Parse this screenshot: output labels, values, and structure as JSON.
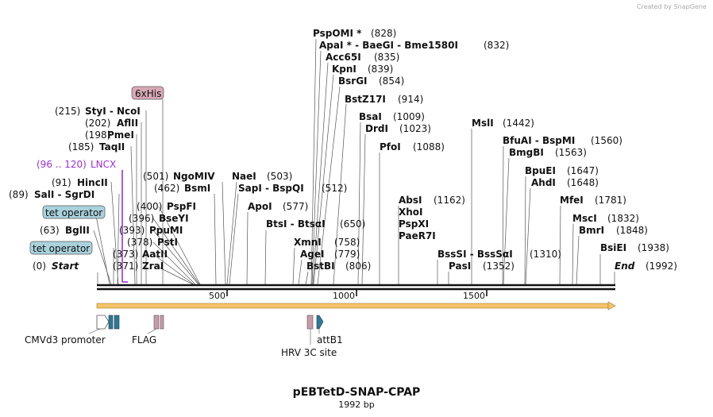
{
  "watermark": "Created by SnapGene",
  "plasmid": {
    "name": "pEBTetD-SNAP-CPAP",
    "length_label": "1992 bp",
    "length": 1992
  },
  "ruler": {
    "ticks": [
      500,
      1000,
      1500
    ],
    "tick_labels": [
      "500",
      "1000",
      "1500"
    ]
  },
  "start_label": "Start",
  "start_pos": "(0)",
  "end_label": "End",
  "end_pos": "(1992)",
  "enzymes": [
    {
      "name": "ZraI",
      "pos": "(371)"
    },
    {
      "name": "AatII",
      "pos": "(373)"
    },
    {
      "name": "PstI",
      "pos": "(378)"
    },
    {
      "name": "PpuMI",
      "pos": "(393)"
    },
    {
      "name": "BseYI",
      "pos": "(396)"
    },
    {
      "name": "PspFI",
      "pos": "(400)"
    },
    {
      "name": "BsmI",
      "pos": "(462)"
    },
    {
      "name": "NgoMIV",
      "pos": "(501)"
    },
    {
      "name": "NaeI",
      "pos": "(503)"
    },
    {
      "name": "SapI - BspQI",
      "pos": "(512)"
    },
    {
      "name": "ApoI",
      "pos": "(577)"
    },
    {
      "name": "BtsI - BtsαI",
      "pos": "(650)"
    },
    {
      "name": "XmnI",
      "pos": "(758)"
    },
    {
      "name": "AgeI",
      "pos": "(779)"
    },
    {
      "name": "BstBI",
      "pos": "(806)"
    },
    {
      "name": "PspOMI *",
      "pos": "(828)"
    },
    {
      "name": "ApaI * - BaeGI - Bme1580I",
      "pos": "(832)"
    },
    {
      "name": "Acc65I",
      "pos": "(835)"
    },
    {
      "name": "KpnI",
      "pos": "(839)"
    },
    {
      "name": "BsrGI",
      "pos": "(854)"
    },
    {
      "name": "BstZ17I",
      "pos": "(914)"
    },
    {
      "name": "BsaI",
      "pos": "(1009)"
    },
    {
      "name": "DrdI",
      "pos": "(1023)"
    },
    {
      "name": "PfoI",
      "pos": "(1088)"
    },
    {
      "name": "AbsI",
      "pos": "(1162)"
    },
    {
      "name": "XhoI",
      "pos": ""
    },
    {
      "name": "PspXI",
      "pos": ""
    },
    {
      "name": "PaeR7I",
      "pos": ""
    },
    {
      "name": "BssSI - BssSαI",
      "pos": "(1310)"
    },
    {
      "name": "PasI",
      "pos": "(1352)"
    },
    {
      "name": "MslI",
      "pos": "(1442)"
    },
    {
      "name": "BfuAI - BspMI",
      "pos": "(1560)"
    },
    {
      "name": "BmgBI",
      "pos": "(1563)"
    },
    {
      "name": "BpuEI",
      "pos": "(1647)"
    },
    {
      "name": "AhdI",
      "pos": "(1648)"
    },
    {
      "name": "MfeI",
      "pos": "(1781)"
    },
    {
      "name": "MscI",
      "pos": "(1832)"
    },
    {
      "name": "BmrI",
      "pos": "(1848)"
    },
    {
      "name": "BsiEI",
      "pos": "(1938)"
    },
    {
      "name": "BglII",
      "pos": "(63)"
    },
    {
      "name": "SalI - SgrDI",
      "pos": "(89)"
    },
    {
      "name": "HincII",
      "pos": "(91)"
    },
    {
      "name": "TaqII",
      "pos": "(185)"
    },
    {
      "name": "PmeI",
      "pos": "(198)"
    },
    {
      "name": "AflII",
      "pos": "(202)"
    },
    {
      "name": "StyI - NcoI",
      "pos": "(215)"
    }
  ],
  "features_top": [
    {
      "name": "tet operator"
    },
    {
      "name": "tet operator"
    },
    {
      "name": "6xHis"
    },
    {
      "name": "LNCX",
      "range": "(96 .. 120)"
    }
  ],
  "features_bottom": [
    {
      "name": "CMVd3 promoter"
    },
    {
      "name": "FLAG"
    },
    {
      "name": "HRV 3C site"
    },
    {
      "name": "attB1"
    }
  ],
  "colors": {
    "backbone": "#111111",
    "orf": "#f5c46a",
    "tet_operator": "#a9d2dc",
    "his_tag": "#d9a9b5",
    "lncx": "#9b30d9",
    "promoter": "#ffffff",
    "attb": "#2a7a9a"
  }
}
